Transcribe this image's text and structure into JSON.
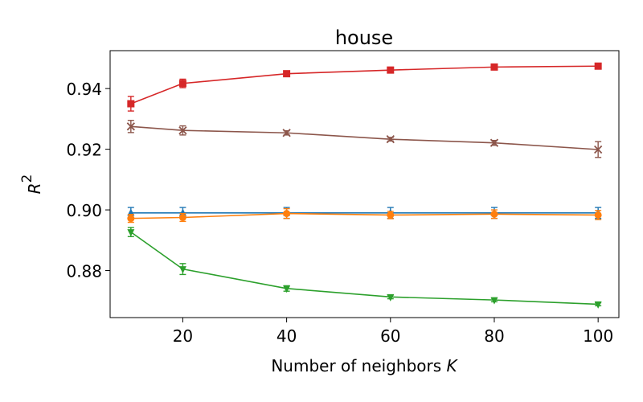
{
  "chart_data": {
    "type": "line",
    "title": "house",
    "xlabel": "Number of neighbors",
    "xlabel_var": "K",
    "ylabel_base": "R",
    "ylabel_sup": "2",
    "x": [
      10,
      20,
      40,
      60,
      80,
      100
    ],
    "xlim": [
      6,
      104
    ],
    "ylim": [
      0.8645,
      0.9525
    ],
    "xticks": [
      20,
      40,
      60,
      80,
      100
    ],
    "yticks": [
      0.88,
      0.9,
      0.92,
      0.94
    ],
    "ytick_labels": [
      "0.88",
      "0.90",
      "0.92",
      "0.94"
    ],
    "grid": false,
    "legend": false,
    "series": [
      {
        "color": "#d62728",
        "marker": "square",
        "values": [
          0.935,
          0.9417,
          0.9449,
          0.9461,
          0.9471,
          0.9474
        ],
        "errors": [
          0.0024,
          0.0014,
          0.0006,
          0.0006,
          0.0005,
          0.0005
        ]
      },
      {
        "color": "#8c564b",
        "marker": "x",
        "values": [
          0.9275,
          0.9262,
          0.9254,
          0.9233,
          0.9221,
          0.9199
        ],
        "errors": [
          0.002,
          0.0015,
          0.0007,
          0.0006,
          0.0008,
          0.0026
        ]
      },
      {
        "color": "#1f77b4",
        "marker": "triangle-up",
        "values": [
          0.899,
          0.899,
          0.899,
          0.899,
          0.899,
          0.899
        ],
        "errors": [
          0.0018,
          0.0018,
          0.0018,
          0.0018,
          0.0018,
          0.0018
        ]
      },
      {
        "color": "#ff7f0e",
        "marker": "circle",
        "values": [
          0.8972,
          0.8975,
          0.8988,
          0.8983,
          0.8986,
          0.8983
        ],
        "errors": [
          0.0013,
          0.0013,
          0.0016,
          0.0012,
          0.0014,
          0.0015
        ]
      },
      {
        "color": "#2ca02c",
        "marker": "triangle-down",
        "values": [
          0.8927,
          0.8805,
          0.8741,
          0.8713,
          0.8703,
          0.8689
        ],
        "errors": [
          0.0015,
          0.0018,
          0.0009,
          0.0006,
          0.0006,
          0.0005
        ]
      }
    ]
  }
}
